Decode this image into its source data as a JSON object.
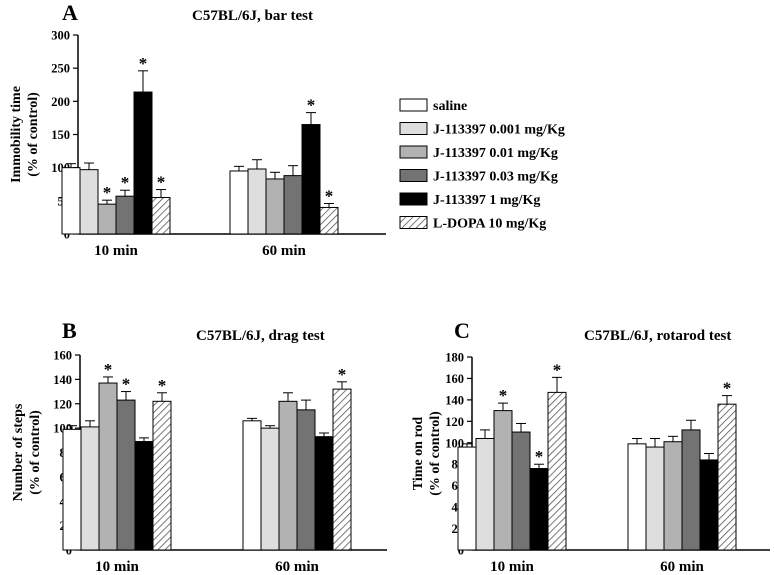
{
  "colors": {
    "saline": "#ffffff",
    "j0001": "#dedede",
    "j001": "#b2b2b2",
    "j003": "#737373",
    "j1": "#000000",
    "ldopa_hatch": "#555555",
    "axis": "#000000"
  },
  "legend": [
    {
      "label": "saline",
      "style": "white"
    },
    {
      "label": "J-113397 0.001 mg/Kg",
      "style": "lightgray"
    },
    {
      "label": "J-113397 0.01 mg/Kg",
      "style": "gray"
    },
    {
      "label": "J-113397 0.03 mg/Kg",
      "style": "darkgray"
    },
    {
      "label": "J-113397 1 mg/Kg",
      "style": "black"
    },
    {
      "label": "L-DOPA 10 mg/Kg",
      "style": "hatch"
    }
  ],
  "chart_data": [
    {
      "type": "bar",
      "panel_label": "A",
      "title": "C57BL/6J, bar test",
      "ylabel": [
        "Immobility time",
        "(% of control)"
      ],
      "ylim": [
        0,
        300
      ],
      "yticks": [
        0,
        50,
        100,
        150,
        200,
        250,
        300
      ],
      "categories": [
        "10 min",
        "60 min"
      ],
      "series": [
        {
          "name": "saline",
          "values": [
            100,
            95
          ],
          "errors": [
            6,
            7
          ],
          "significant": [
            false,
            false
          ]
        },
        {
          "name": "J-113397 0.001 mg/Kg",
          "values": [
            97,
            98
          ],
          "errors": [
            10,
            14
          ],
          "significant": [
            false,
            false
          ]
        },
        {
          "name": "J-113397 0.01 mg/Kg",
          "values": [
            45,
            83
          ],
          "errors": [
            6,
            10
          ],
          "significant": [
            true,
            false
          ]
        },
        {
          "name": "J-113397 0.03 mg/Kg",
          "values": [
            57,
            88
          ],
          "errors": [
            9,
            15
          ],
          "significant": [
            true,
            false
          ]
        },
        {
          "name": "J-113397 1 mg/Kg",
          "values": [
            214,
            165
          ],
          "errors": [
            32,
            18
          ],
          "significant": [
            true,
            true
          ]
        },
        {
          "name": "L-DOPA 10 mg/Kg",
          "values": [
            55,
            40
          ],
          "errors": [
            12,
            6
          ],
          "significant": [
            true,
            true
          ]
        }
      ],
      "star": "*"
    },
    {
      "type": "bar",
      "panel_label": "B",
      "title": "C57BL/6J, drag test",
      "ylabel": [
        "Number of steps",
        "(% of control)"
      ],
      "ylim": [
        0,
        160
      ],
      "yticks": [
        0,
        20,
        40,
        60,
        80,
        100,
        120,
        140,
        160
      ],
      "categories": [
        "10 min",
        "60 min"
      ],
      "series": [
        {
          "name": "saline",
          "values": [
            99,
            106
          ],
          "errors": [
            3,
            2
          ],
          "significant": [
            false,
            false
          ]
        },
        {
          "name": "J-113397 0.001 mg/Kg",
          "values": [
            101,
            100
          ],
          "errors": [
            5,
            2
          ],
          "significant": [
            false,
            false
          ]
        },
        {
          "name": "J-113397 0.01 mg/Kg",
          "values": [
            137,
            122
          ],
          "errors": [
            5,
            7
          ],
          "significant": [
            true,
            false
          ]
        },
        {
          "name": "J-113397 0.03 mg/Kg",
          "values": [
            123,
            115
          ],
          "errors": [
            7,
            8
          ],
          "significant": [
            true,
            false
          ]
        },
        {
          "name": "J-113397 1 mg/Kg",
          "values": [
            89,
            93
          ],
          "errors": [
            3,
            3
          ],
          "significant": [
            false,
            false
          ]
        },
        {
          "name": "L-DOPA 10 mg/Kg",
          "values": [
            122,
            132
          ],
          "errors": [
            7,
            6
          ],
          "significant": [
            true,
            true
          ]
        }
      ],
      "star": "*"
    },
    {
      "type": "bar",
      "panel_label": "C",
      "title": "C57BL/6J, rotarod test",
      "ylabel": [
        "Time on rod",
        "(% of control)"
      ],
      "ylim": [
        0,
        180
      ],
      "yticks": [
        0,
        20,
        40,
        60,
        80,
        100,
        120,
        140,
        160,
        180
      ],
      "categories": [
        "10 min",
        "60 min"
      ],
      "series": [
        {
          "name": "saline",
          "values": [
            96,
            99
          ],
          "errors": [
            3,
            5
          ],
          "significant": [
            false,
            false
          ]
        },
        {
          "name": "J-113397 0.001 mg/Kg",
          "values": [
            104,
            96
          ],
          "errors": [
            8,
            8
          ],
          "significant": [
            false,
            false
          ]
        },
        {
          "name": "J-113397 0.01 mg/Kg",
          "values": [
            130,
            101
          ],
          "errors": [
            7,
            5
          ],
          "significant": [
            true,
            false
          ]
        },
        {
          "name": "J-113397 0.03 mg/Kg",
          "values": [
            110,
            112
          ],
          "errors": [
            8,
            9
          ],
          "significant": [
            false,
            false
          ]
        },
        {
          "name": "J-113397 1 mg/Kg",
          "values": [
            76,
            84
          ],
          "errors": [
            4,
            6
          ],
          "significant": [
            true,
            false
          ]
        },
        {
          "name": "L-DOPA 10 mg/Kg",
          "values": [
            147,
            136
          ],
          "errors": [
            14,
            8
          ],
          "significant": [
            true,
            true
          ]
        }
      ],
      "star": "*"
    }
  ]
}
